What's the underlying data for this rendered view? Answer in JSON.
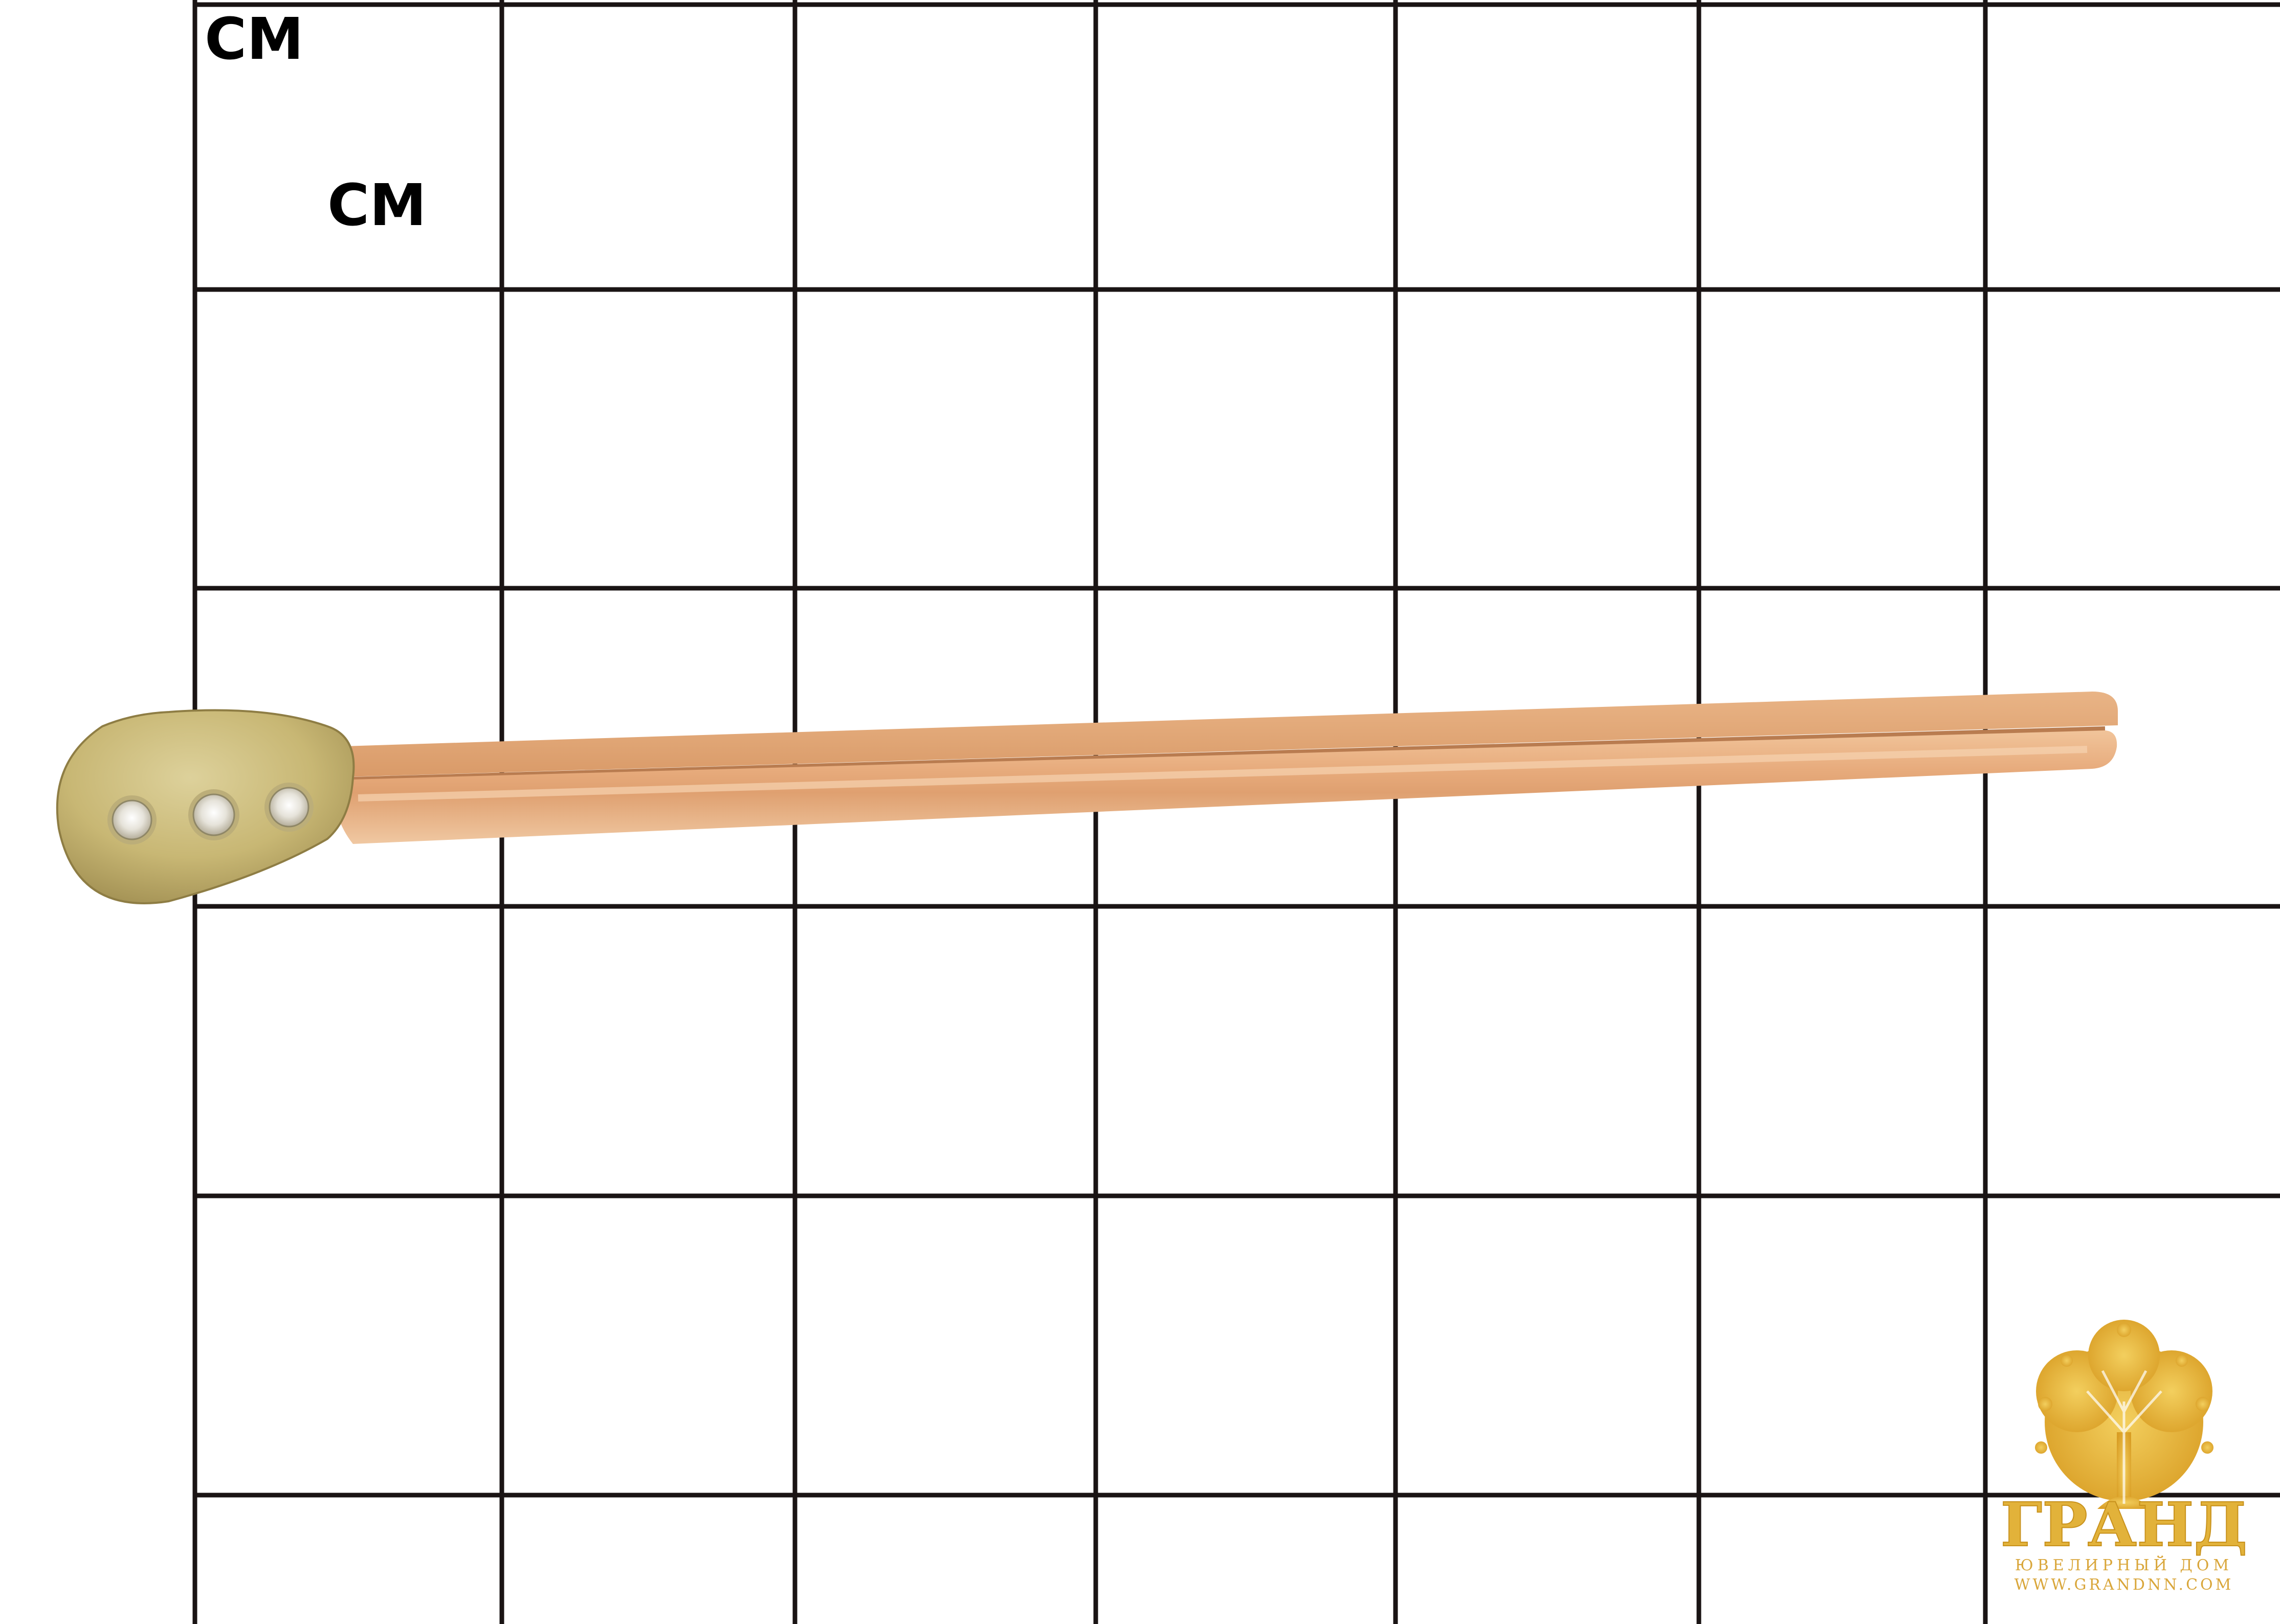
{
  "labels": {
    "unit_top": "CM",
    "unit_second": "CM"
  },
  "logo": {
    "brand": "ГРАНД",
    "subtitle": "ЮВЕЛИРНЫЙ ДОМ",
    "website": "WWW.GRANDNN.COM"
  },
  "colors": {
    "grid_line": "#1a1414",
    "background": "#ffffff",
    "rose_gold": "#e6a978",
    "yellow_gold": "#cdbd7e",
    "logo_gold": "#e2b23a"
  },
  "photo": {
    "subject": "gold-tie-clip-with-diamonds",
    "diamond_count": 3
  }
}
